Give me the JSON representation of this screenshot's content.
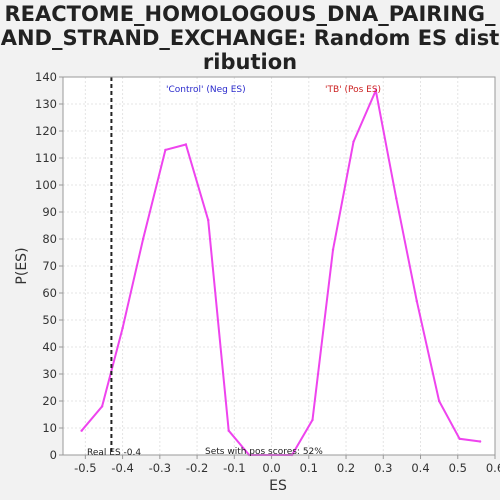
{
  "chart_data": {
    "type": "line",
    "title": "REACTOME_HOMOLOGOUS_DNA_PAIRING_AND_STRAND_EXCHANGE: Random ES distribution",
    "xlabel": "ES",
    "ylabel": "P(ES)",
    "xlim": [
      -0.56,
      0.6
    ],
    "ylim": [
      0,
      140
    ],
    "xticks": [
      "-0.5",
      "-0.4",
      "-0.3",
      "-0.2",
      "-0.1",
      "0.0",
      "0.1",
      "0.2",
      "0.3",
      "0.4",
      "0.5",
      "0.6"
    ],
    "yticks": [
      "0",
      "10",
      "20",
      "30",
      "40",
      "50",
      "60",
      "70",
      "80",
      "90",
      "100",
      "110",
      "120",
      "130",
      "140"
    ],
    "grid": true,
    "series": [
      {
        "color": "#ee44ee",
        "x": [
          -0.51,
          -0.455,
          -0.4,
          -0.345,
          -0.285,
          -0.23,
          -0.17,
          -0.115,
          -0.06,
          0.0,
          0.055,
          0.11,
          0.165,
          0.22,
          0.28,
          0.335,
          0.39,
          0.45,
          0.505,
          0.56
        ],
        "y": [
          9,
          18,
          47,
          80,
          113,
          115,
          87,
          9,
          0,
          0,
          0,
          13,
          76,
          116,
          135,
          95,
          57,
          20,
          6,
          5
        ]
      }
    ],
    "real_es": -0.43,
    "annotations": {
      "neg_label": "'Control' (Neg ES)",
      "neg_color": "#2a2acc",
      "pos_label": "'TB' (Pos ES)",
      "pos_color": "#cc2222",
      "real_es_label": "Real ES -0.4",
      "pos_scores_label": "Sets with pos scores: 52%"
    }
  }
}
